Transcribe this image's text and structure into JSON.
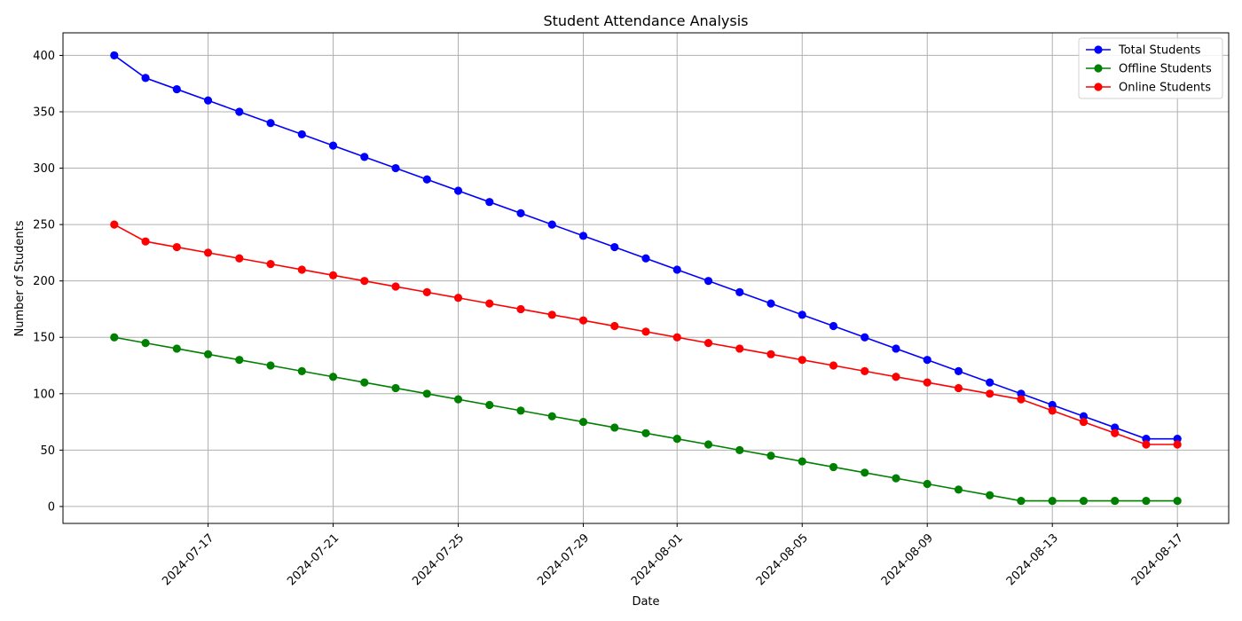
{
  "chart_data": {
    "type": "line",
    "title": "Student Attendance Analysis",
    "xlabel": "Date",
    "ylabel": "Number of Students",
    "grid": true,
    "legend_position": "top-right",
    "x_start": "2024-07-14",
    "x": [
      "2024-07-14",
      "2024-07-15",
      "2024-07-16",
      "2024-07-17",
      "2024-07-18",
      "2024-07-19",
      "2024-07-20",
      "2024-07-21",
      "2024-07-22",
      "2024-07-23",
      "2024-07-24",
      "2024-07-25",
      "2024-07-26",
      "2024-07-27",
      "2024-07-28",
      "2024-07-29",
      "2024-07-30",
      "2024-07-31",
      "2024-08-01",
      "2024-08-02",
      "2024-08-03",
      "2024-08-04",
      "2024-08-05",
      "2024-08-06",
      "2024-08-07",
      "2024-08-08",
      "2024-08-09",
      "2024-08-10",
      "2024-08-11",
      "2024-08-12",
      "2024-08-13",
      "2024-08-14",
      "2024-08-15",
      "2024-08-16",
      "2024-08-17"
    ],
    "xticks": [
      "2024-07-17",
      "2024-07-21",
      "2024-07-25",
      "2024-07-29",
      "2024-08-01",
      "2024-08-05",
      "2024-08-09",
      "2024-08-13",
      "2024-08-17"
    ],
    "ylim": [
      -15,
      420
    ],
    "yticks": [
      0,
      50,
      100,
      150,
      200,
      250,
      300,
      350,
      400
    ],
    "series": [
      {
        "name": "Total Students",
        "color": "#0000ff",
        "values": [
          400,
          380,
          370,
          360,
          350,
          340,
          330,
          320,
          310,
          300,
          290,
          280,
          270,
          260,
          250,
          240,
          230,
          220,
          210,
          200,
          190,
          180,
          170,
          160,
          150,
          140,
          130,
          120,
          110,
          100,
          90,
          80,
          70,
          60,
          60
        ]
      },
      {
        "name": "Offline Students",
        "color": "#008000",
        "values": [
          150,
          145,
          140,
          135,
          130,
          125,
          120,
          115,
          110,
          105,
          100,
          95,
          90,
          85,
          80,
          75,
          70,
          65,
          60,
          55,
          50,
          45,
          40,
          35,
          30,
          25,
          20,
          15,
          10,
          5,
          5,
          5,
          5,
          5,
          5
        ]
      },
      {
        "name": "Online Students",
        "color": "#ff0000",
        "values": [
          250,
          235,
          230,
          225,
          220,
          215,
          210,
          205,
          200,
          195,
          190,
          185,
          180,
          175,
          170,
          165,
          160,
          155,
          150,
          145,
          140,
          135,
          130,
          125,
          120,
          115,
          110,
          105,
          100,
          95,
          85,
          75,
          65,
          55,
          55
        ]
      }
    ]
  }
}
